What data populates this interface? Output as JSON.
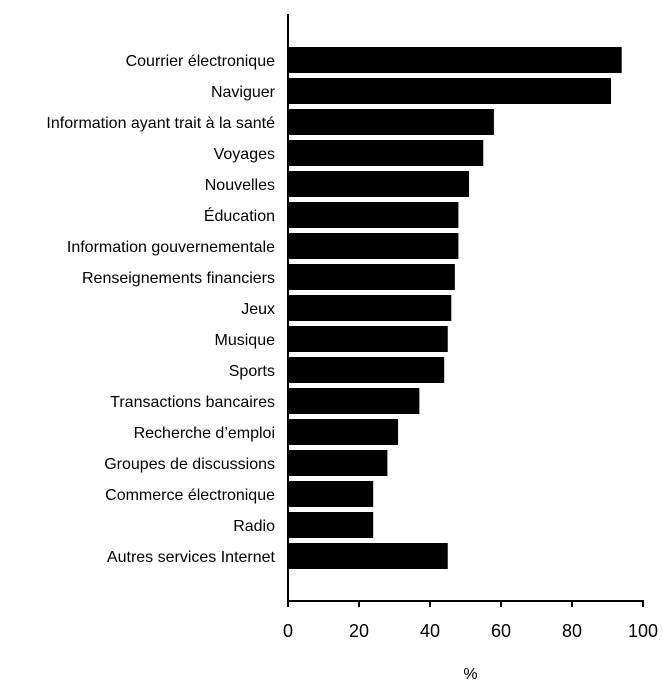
{
  "chart_data": {
    "type": "bar",
    "orientation": "horizontal",
    "title": "",
    "xlabel": "%",
    "ylabel": "",
    "xlim": [
      0,
      100
    ],
    "xticks": [
      0,
      20,
      40,
      60,
      80,
      100
    ],
    "grid": false,
    "legend": "none",
    "bar_color": "#000000",
    "categories": [
      "Courrier électronique",
      "Naviguer",
      "Information ayant trait à la santé",
      "Voyages",
      "Nouvelles",
      "Éducation",
      "Information gouvernementale",
      "Renseignements financiers",
      "Jeux",
      "Musique",
      "Sports",
      "Transactions bancaires",
      "Recherche d’emploi",
      "Groupes de discussions",
      "Commerce électronique",
      "Radio",
      "Autres services Internet"
    ],
    "values": [
      94,
      91,
      58,
      55,
      51,
      48,
      48,
      47,
      46,
      45,
      44,
      37,
      31,
      28,
      24,
      24,
      45
    ]
  }
}
